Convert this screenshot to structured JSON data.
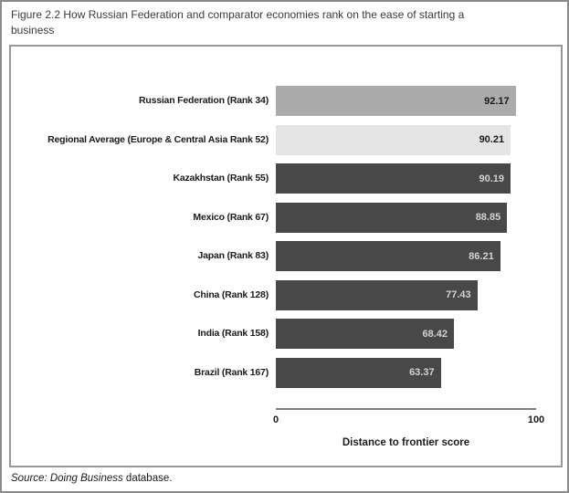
{
  "figure": {
    "title": "Figure 2.2 How Russian Federation and comparator economies rank on the ease of starting a business"
  },
  "chart_data": {
    "type": "bar",
    "orientation": "horizontal",
    "title": "Figure 2.2 How Russian Federation and comparator economies rank on the ease of starting a business",
    "categories": [
      "Russian Federation (Rank 34)",
      "Regional Average (Europe & Central Asia Rank 52)",
      "Kazakhstan (Rank 55)",
      "Mexico (Rank 67)",
      "Japan (Rank 83)",
      "China (Rank 128)",
      "India (Rank 158)",
      "Brazil (Rank 167)"
    ],
    "values": [
      92.17,
      90.21,
      90.19,
      88.85,
      86.21,
      77.43,
      68.42,
      63.37
    ],
    "bars": [
      {
        "label": "Russian Federation (Rank 34)",
        "value": "92.17",
        "bar_color": "#ababab",
        "value_color": "#1a1a1a"
      },
      {
        "label": "Regional Average (Europe & Central Asia Rank 52)",
        "value": "90.21",
        "bar_color": "#e4e4e4",
        "value_color": "#1a1a1a"
      },
      {
        "label": "Kazakhstan (Rank 55)",
        "value": "90.19",
        "bar_color": "#484848",
        "value_color": "#d2d2d2"
      },
      {
        "label": "Mexico (Rank 67)",
        "value": "88.85",
        "bar_color": "#484848",
        "value_color": "#d2d2d2"
      },
      {
        "label": "Japan (Rank 83)",
        "value": "86.21",
        "bar_color": "#484848",
        "value_color": "#d2d2d2"
      },
      {
        "label": "China (Rank 128)",
        "value": "77.43",
        "bar_color": "#484848",
        "value_color": "#d2d2d2"
      },
      {
        "label": "India (Rank 158)",
        "value": "68.42",
        "bar_color": "#484848",
        "value_color": "#d2d2d2"
      },
      {
        "label": "Brazil (Rank 167)",
        "value": "63.37",
        "bar_color": "#484848",
        "value_color": "#d2d2d2"
      }
    ],
    "xlabel": "Distance to frontier score",
    "xlim": [
      0,
      100
    ],
    "xticks": [
      "0",
      "100"
    ],
    "grid": false,
    "legend": "none",
    "value_labels": "inside-right"
  },
  "axis": {
    "tick_min": "0",
    "tick_max": "100",
    "label": "Distance to frontier score"
  },
  "source": {
    "italic_part": "Source: Doing Business",
    "regular_part": " database."
  },
  "colors": {
    "highlight_bar": "#ababab",
    "regional_average_bar": "#e4e4e4",
    "comparator_bar": "#484848",
    "axis_line": "#7f7f7f",
    "panel_border": "#979797",
    "page_border": "#8a8a8a"
  }
}
